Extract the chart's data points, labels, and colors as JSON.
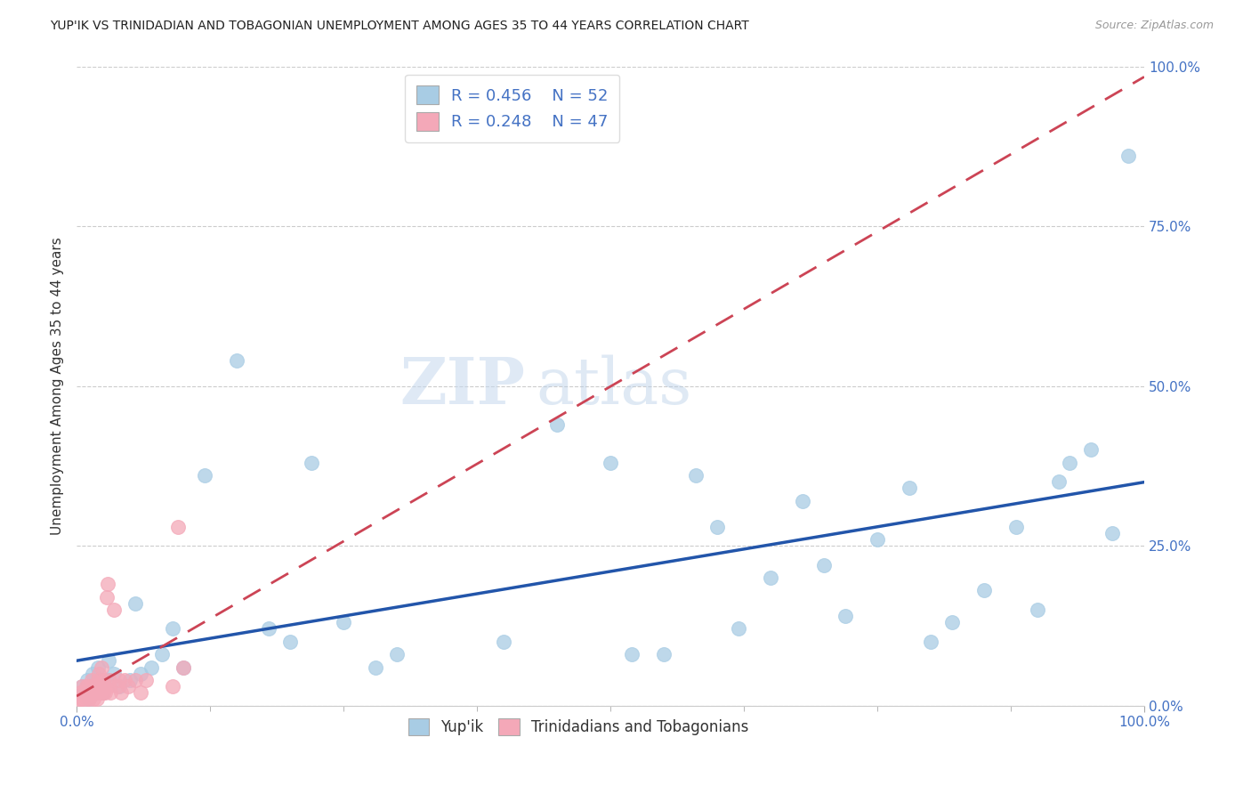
{
  "title": "YUP'IK VS TRINIDADIAN AND TOBAGONIAN UNEMPLOYMENT AMONG AGES 35 TO 44 YEARS CORRELATION CHART",
  "source": "Source: ZipAtlas.com",
  "ylabel": "Unemployment Among Ages 35 to 44 years",
  "legend_label1": "Yup'ik",
  "legend_label2": "Trinidadians and Tobagonians",
  "r1": "0.456",
  "n1": "52",
  "r2": "0.248",
  "n2": "47",
  "color_blue": "#a8cce4",
  "color_pink": "#f4a8b8",
  "color_line_blue": "#2255aa",
  "color_line_pink": "#cc4455",
  "watermark_zip": "ZIP",
  "watermark_atlas": "atlas",
  "blue_x": [
    0.005,
    0.008,
    0.01,
    0.012,
    0.015,
    0.018,
    0.02,
    0.02,
    0.025,
    0.03,
    0.03,
    0.035,
    0.04,
    0.05,
    0.055,
    0.06,
    0.07,
    0.08,
    0.09,
    0.1,
    0.12,
    0.15,
    0.18,
    0.2,
    0.22,
    0.25,
    0.28,
    0.3,
    0.4,
    0.45,
    0.5,
    0.52,
    0.55,
    0.58,
    0.6,
    0.62,
    0.65,
    0.68,
    0.7,
    0.72,
    0.75,
    0.78,
    0.8,
    0.82,
    0.85,
    0.88,
    0.9,
    0.92,
    0.93,
    0.95,
    0.97,
    0.985
  ],
  "blue_y": [
    0.03,
    0.02,
    0.04,
    0.01,
    0.05,
    0.02,
    0.03,
    0.06,
    0.02,
    0.04,
    0.07,
    0.05,
    0.03,
    0.04,
    0.16,
    0.05,
    0.06,
    0.08,
    0.12,
    0.06,
    0.36,
    0.54,
    0.12,
    0.1,
    0.38,
    0.13,
    0.06,
    0.08,
    0.1,
    0.44,
    0.38,
    0.08,
    0.08,
    0.36,
    0.28,
    0.12,
    0.2,
    0.32,
    0.22,
    0.14,
    0.26,
    0.34,
    0.1,
    0.13,
    0.18,
    0.28,
    0.15,
    0.35,
    0.38,
    0.4,
    0.27,
    0.86
  ],
  "pink_x": [
    0.002,
    0.003,
    0.004,
    0.005,
    0.006,
    0.007,
    0.008,
    0.009,
    0.01,
    0.01,
    0.011,
    0.012,
    0.013,
    0.014,
    0.015,
    0.015,
    0.016,
    0.017,
    0.018,
    0.019,
    0.02,
    0.02,
    0.021,
    0.022,
    0.022,
    0.023,
    0.025,
    0.025,
    0.026,
    0.027,
    0.028,
    0.029,
    0.03,
    0.031,
    0.032,
    0.035,
    0.038,
    0.04,
    0.042,
    0.045,
    0.048,
    0.055,
    0.06,
    0.065,
    0.09,
    0.095,
    0.1
  ],
  "pink_y": [
    0.01,
    0.02,
    0.01,
    0.03,
    0.01,
    0.02,
    0.02,
    0.03,
    0.01,
    0.02,
    0.03,
    0.01,
    0.02,
    0.04,
    0.02,
    0.03,
    0.01,
    0.03,
    0.02,
    0.01,
    0.04,
    0.02,
    0.05,
    0.03,
    0.02,
    0.06,
    0.02,
    0.04,
    0.03,
    0.02,
    0.17,
    0.19,
    0.03,
    0.04,
    0.02,
    0.15,
    0.03,
    0.04,
    0.02,
    0.04,
    0.03,
    0.04,
    0.02,
    0.04,
    0.03,
    0.28,
    0.06
  ]
}
